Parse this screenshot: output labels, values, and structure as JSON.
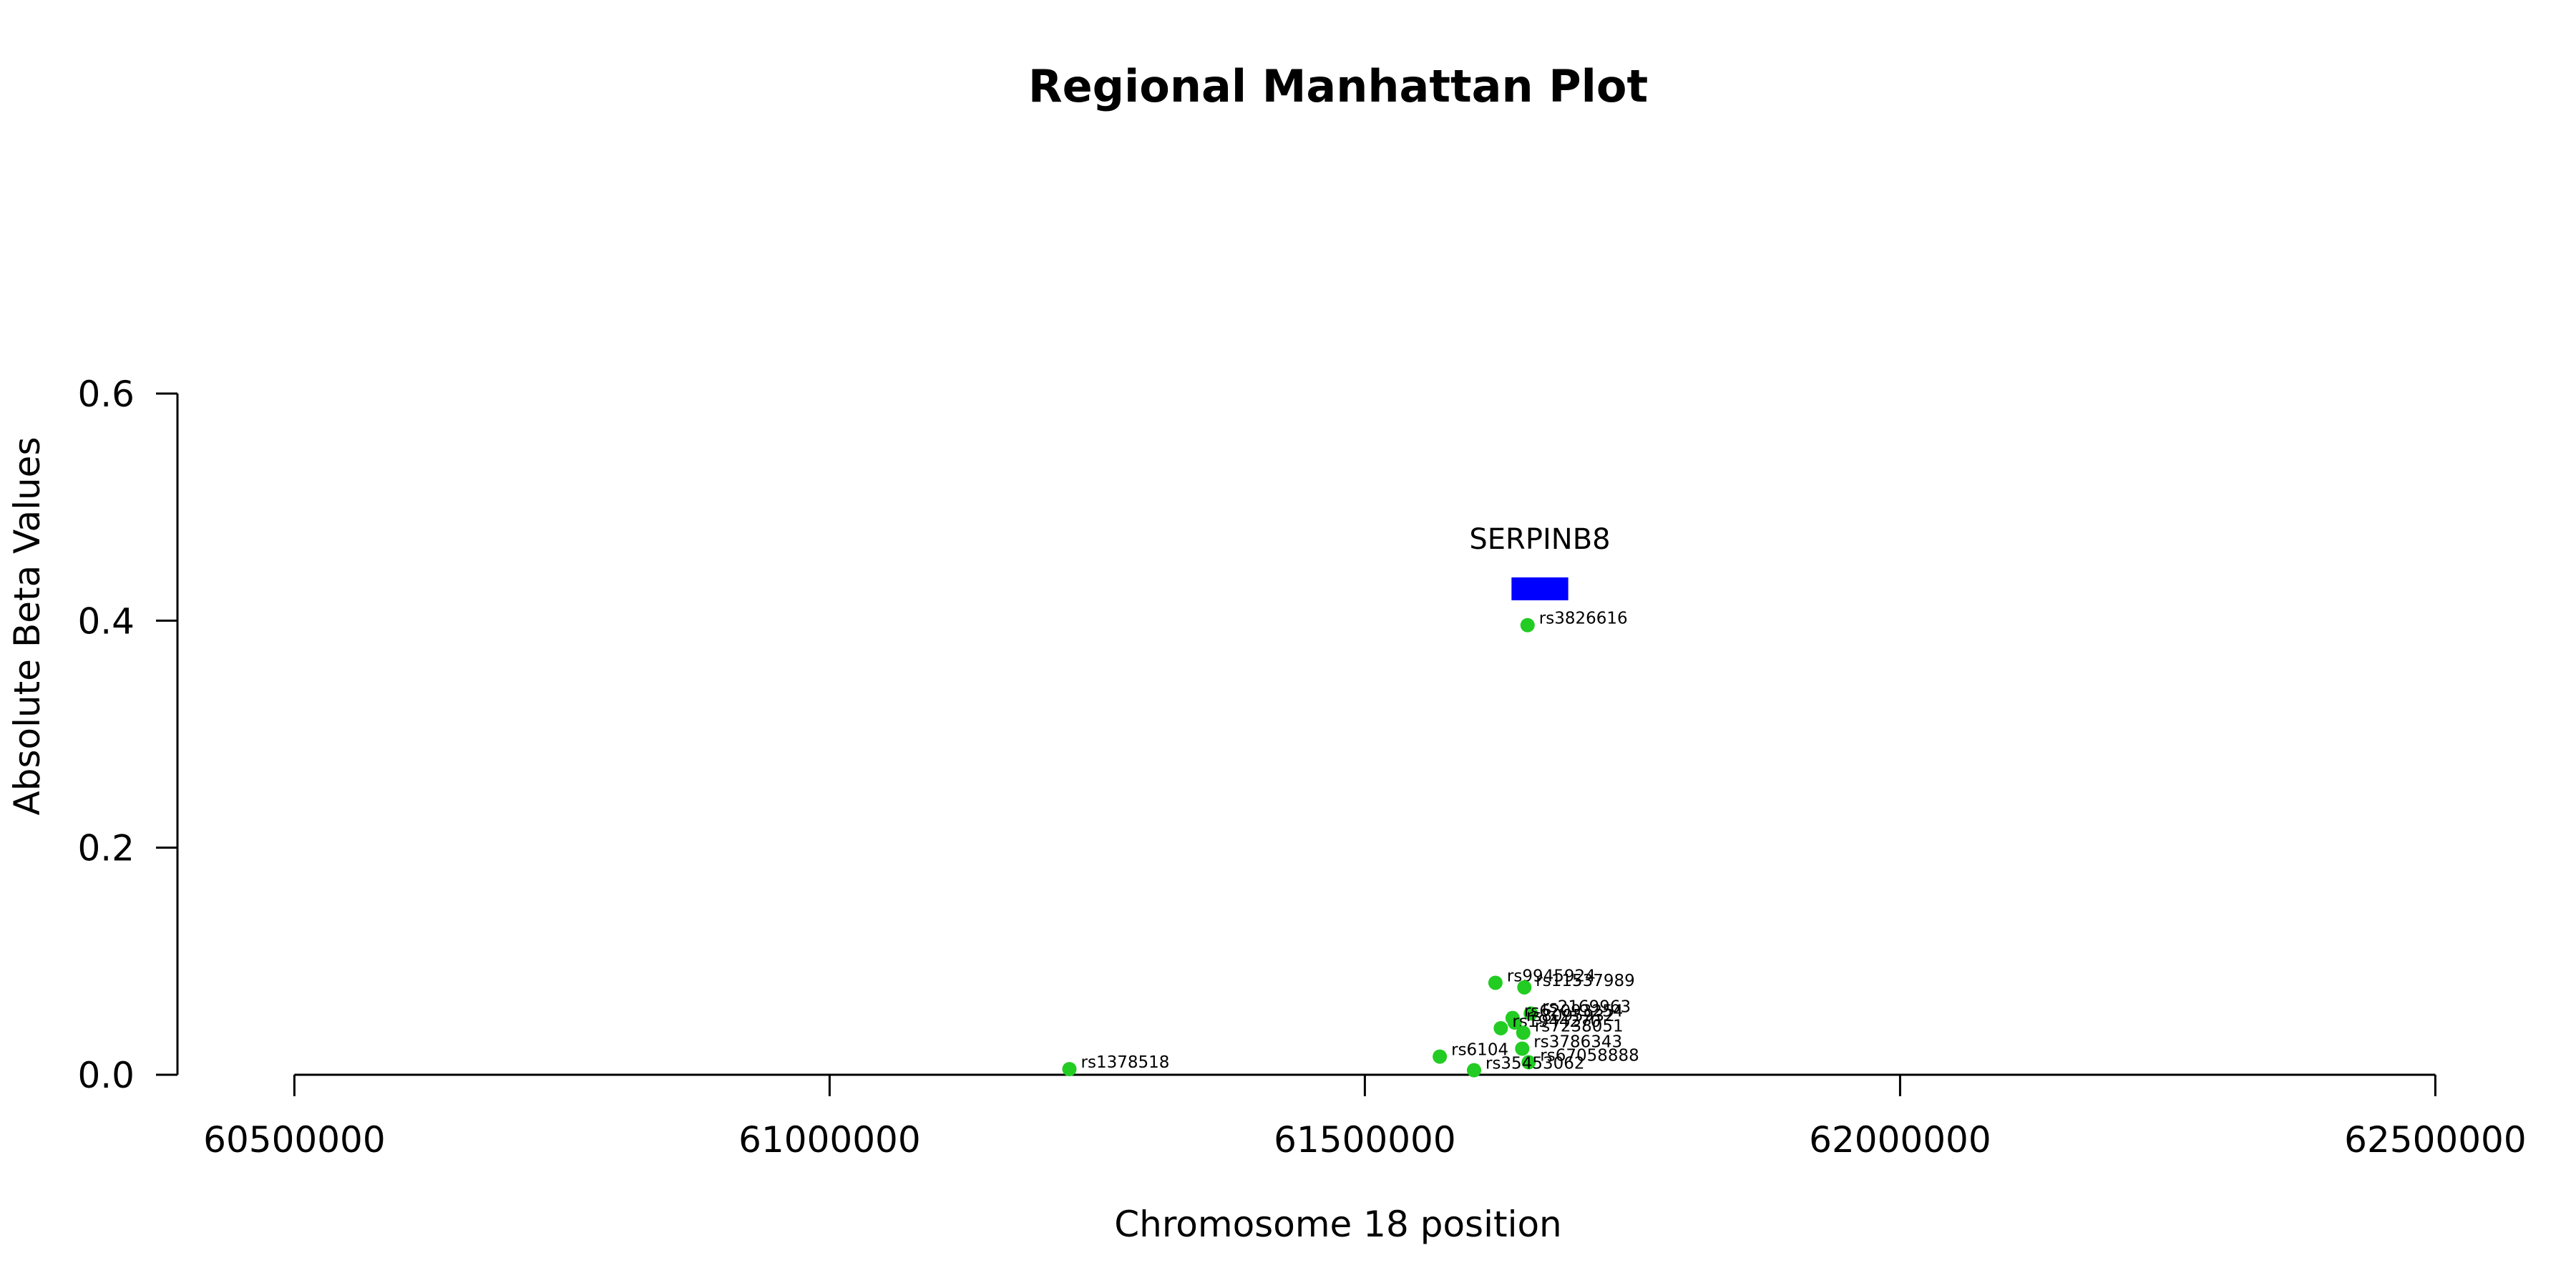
{
  "chart_data": {
    "type": "scatter",
    "title": "Regional Manhattan Plot",
    "xlabel": "Chromosome 18 position",
    "ylabel": "Absolute Beta Values",
    "xlim": [
      60225000,
      62725000
    ],
    "ylim": [
      0,
      0.6
    ],
    "x_ticks": [
      60500000,
      61000000,
      61500000,
      62000000,
      62500000
    ],
    "x_tick_labels": [
      "60500000",
      "61000000",
      "61500000",
      "62000000",
      "62500000"
    ],
    "y_ticks": [
      0.0,
      0.2,
      0.4,
      0.6
    ],
    "y_tick_labels": [
      "0.0",
      "0.2",
      "0.4",
      "0.6"
    ],
    "grid": false,
    "point_color": "#22cc22",
    "gene_color": "#0000ff",
    "genes": [
      {
        "name": "SERPINB8",
        "start": 61637000,
        "end": 61690000,
        "y": 0.428
      }
    ],
    "points": [
      {
        "label": "rs3826616",
        "x": 61652000,
        "y": 0.396
      },
      {
        "label": "rs9945924",
        "x": 61622000,
        "y": 0.081
      },
      {
        "label": "rs11537989",
        "x": 61649000,
        "y": 0.077
      },
      {
        "label": "rs2169963",
        "x": 61655000,
        "y": 0.054
      },
      {
        "label": "rs62093254",
        "x": 61638000,
        "y": 0.05
      },
      {
        "label": "rs8095932",
        "x": 61640000,
        "y": 0.046
      },
      {
        "label": "rs1944270",
        "x": 61627000,
        "y": 0.041
      },
      {
        "label": "rs7238051",
        "x": 61648000,
        "y": 0.037
      },
      {
        "label": "rs3786343",
        "x": 61647000,
        "y": 0.023
      },
      {
        "label": "rs6104",
        "x": 61570000,
        "y": 0.016
      },
      {
        "label": "rs67058888",
        "x": 61653000,
        "y": 0.011
      },
      {
        "label": "rs35453062",
        "x": 61602000,
        "y": 0.004
      },
      {
        "label": "rs1378518",
        "x": 61224000,
        "y": 0.005
      }
    ]
  }
}
